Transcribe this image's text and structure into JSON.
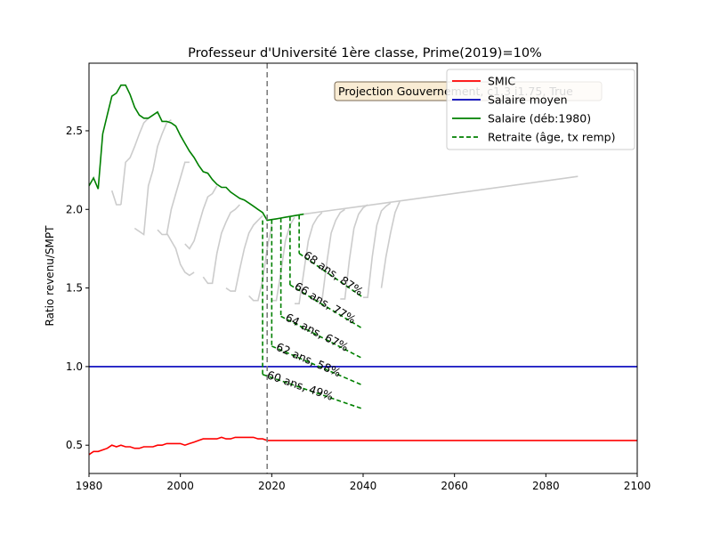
{
  "chart_data": {
    "type": "line",
    "title": "Professeur d'Université 1ère classe, Prime(2019)=10%",
    "xlabel": "",
    "ylabel": "Ratio revenu/SMPT",
    "xlim": [
      1980,
      2100
    ],
    "ylim": [
      0.32,
      2.93
    ],
    "x_ticks": [
      1980,
      2000,
      2020,
      2040,
      2060,
      2080,
      2100
    ],
    "y_ticks": [
      0.5,
      1.0,
      1.5,
      2.0,
      2.5
    ],
    "vline_x": 2019,
    "legend_position": "top-right",
    "annotation": "Projection Gouvernement, c1.3 i1.75, True",
    "colors": {
      "smic": "#ff0000",
      "salaire_moyen": "#0000bb",
      "salaire": "#008000",
      "gray": "#cccccc",
      "vline": "#808080"
    },
    "legend": [
      {
        "label": "SMIC",
        "color": "#ff0000",
        "dash": false
      },
      {
        "label": "Salaire moyen",
        "color": "#0000bb",
        "dash": false
      },
      {
        "label": "Salaire (déb:1980)",
        "color": "#008000",
        "dash": false
      },
      {
        "label": "Retraite (âge, tx remp)",
        "color": "#008000",
        "dash": true
      }
    ],
    "series": [
      {
        "name": "SMIC",
        "color": "#ff0000",
        "x": [
          1980,
          1981,
          1982,
          1983,
          1984,
          1985,
          1986,
          1987,
          1988,
          1989,
          1990,
          1991,
          1992,
          1993,
          1994,
          1995,
          1996,
          1997,
          1998,
          1999,
          2000,
          2001,
          2002,
          2003,
          2004,
          2005,
          2006,
          2007,
          2008,
          2009,
          2010,
          2011,
          2012,
          2013,
          2014,
          2015,
          2016,
          2017,
          2018,
          2019,
          2100
        ],
        "y": [
          0.44,
          0.46,
          0.46,
          0.47,
          0.48,
          0.5,
          0.49,
          0.5,
          0.49,
          0.49,
          0.48,
          0.48,
          0.49,
          0.49,
          0.49,
          0.5,
          0.5,
          0.51,
          0.51,
          0.51,
          0.51,
          0.5,
          0.51,
          0.52,
          0.53,
          0.54,
          0.54,
          0.54,
          0.54,
          0.55,
          0.54,
          0.54,
          0.55,
          0.55,
          0.55,
          0.55,
          0.55,
          0.54,
          0.54,
          0.53,
          0.53
        ]
      },
      {
        "name": "Salaire moyen",
        "color": "#0000bb",
        "x": [
          1980,
          2100
        ],
        "y": [
          1.0,
          1.0
        ]
      },
      {
        "name": "Salaire (déb:1980)",
        "color": "#008000",
        "x": [
          1980,
          1981,
          1982,
          1983,
          1984,
          1985,
          1986,
          1987,
          1988,
          1989,
          1990,
          1991,
          1992,
          1993,
          1994,
          1995,
          1996,
          1997,
          1998,
          1999,
          2000,
          2001,
          2002,
          2003,
          2004,
          2005,
          2006,
          2007,
          2008,
          2009,
          2010,
          2011,
          2012,
          2013,
          2014,
          2015,
          2016,
          2017,
          2018,
          2019,
          2020,
          2021,
          2022,
          2023,
          2024,
          2025,
          2026,
          2027
        ],
        "y": [
          2.15,
          2.2,
          2.13,
          2.48,
          2.6,
          2.72,
          2.74,
          2.79,
          2.79,
          2.73,
          2.65,
          2.6,
          2.58,
          2.58,
          2.6,
          2.62,
          2.56,
          2.56,
          2.55,
          2.53,
          2.47,
          2.42,
          2.37,
          2.33,
          2.28,
          2.24,
          2.23,
          2.19,
          2.16,
          2.14,
          2.14,
          2.11,
          2.09,
          2.07,
          2.06,
          2.04,
          2.02,
          2.0,
          1.98,
          1.93,
          1.935,
          1.94,
          1.945,
          1.95,
          1.955,
          1.96,
          1.965,
          1.97
        ]
      }
    ],
    "gray_curves": [
      {
        "x": [
          1985,
          1986,
          1987
        ],
        "y": [
          2.12,
          2.03,
          2.03
        ]
      },
      {
        "x": [
          1987,
          1988,
          1989,
          1990,
          1991,
          1992,
          1993
        ],
        "y": [
          2.03,
          2.3,
          2.33,
          2.4,
          2.48,
          2.55,
          2.58
        ]
      },
      {
        "x": [
          1990,
          1992,
          1993,
          1994,
          1995,
          1996,
          1997,
          1998
        ],
        "y": [
          1.88,
          1.84,
          2.15,
          2.25,
          2.4,
          2.48,
          2.55,
          2.57
        ]
      },
      {
        "x": [
          1995,
          1996,
          1997,
          1998,
          1999,
          2000,
          2001,
          2002
        ],
        "y": [
          1.87,
          1.84,
          1.84,
          2.0,
          2.1,
          2.2,
          2.3,
          2.3
        ]
      },
      {
        "x": [
          1997,
          1999,
          2000,
          2001,
          2002,
          2003
        ],
        "y": [
          1.85,
          1.75,
          1.65,
          1.6,
          1.58,
          1.6
        ]
      },
      {
        "x": [
          2001,
          2002,
          2003,
          2004,
          2005,
          2006,
          2007,
          2008
        ],
        "y": [
          1.78,
          1.75,
          1.8,
          1.9,
          2.0,
          2.08,
          2.1,
          2.15
        ]
      },
      {
        "x": [
          2005,
          2006,
          2007,
          2008,
          2009,
          2010,
          2011,
          2012,
          2013
        ],
        "y": [
          1.57,
          1.53,
          1.53,
          1.72,
          1.85,
          1.92,
          1.98,
          2.0,
          2.03
        ]
      },
      {
        "x": [
          2010,
          2011,
          2012,
          2013,
          2014,
          2015,
          2016,
          2017,
          2018
        ],
        "y": [
          1.5,
          1.48,
          1.48,
          1.62,
          1.75,
          1.85,
          1.9,
          1.93,
          1.96
        ]
      },
      {
        "x": [
          2015,
          2016,
          2017,
          2018,
          2019,
          2020
        ],
        "y": [
          1.45,
          1.42,
          1.42,
          1.55,
          1.75,
          1.9
        ]
      },
      {
        "x": [
          2020,
          2021,
          2022,
          2023,
          2024,
          2025
        ],
        "y": [
          1.42,
          1.42,
          1.6,
          1.8,
          1.9,
          1.95
        ]
      },
      {
        "x": [
          2025,
          2026,
          2027,
          2028,
          2029,
          2030,
          2031
        ],
        "y": [
          1.4,
          1.4,
          1.6,
          1.8,
          1.9,
          1.95,
          1.98
        ]
      },
      {
        "x": [
          2030,
          2031,
          2032,
          2033,
          2034,
          2035,
          2036
        ],
        "y": [
          1.42,
          1.42,
          1.65,
          1.85,
          1.93,
          1.98,
          2.0
        ]
      },
      {
        "x": [
          2035,
          2036,
          2037,
          2038,
          2039,
          2040,
          2041
        ],
        "y": [
          1.43,
          1.43,
          1.68,
          1.88,
          1.97,
          2.01,
          2.03
        ]
      },
      {
        "x": [
          2040,
          2041,
          2042,
          2043,
          2044,
          2045,
          2046
        ],
        "y": [
          1.44,
          1.44,
          1.7,
          1.9,
          1.99,
          2.02,
          2.04
        ]
      },
      {
        "x": [
          2044,
          2045,
          2046,
          2047,
          2048
        ],
        "y": [
          1.5,
          1.7,
          1.85,
          1.98,
          2.05
        ]
      },
      {
        "x": [
          2027,
          2087
        ],
        "y": [
          1.97,
          2.21
        ]
      }
    ],
    "retraites": [
      {
        "label": "60 ans, 49%",
        "start_x": 2018,
        "start_y": 1.93,
        "end_y": 0.95,
        "end_x": 2040,
        "end_line_y": 0.73
      },
      {
        "label": "62 ans, 58%",
        "start_x": 2020,
        "start_y": 1.935,
        "end_y": 1.13,
        "end_x": 2040,
        "end_line_y": 0.88
      },
      {
        "label": "64 ans, 67%",
        "start_x": 2022,
        "start_y": 1.945,
        "end_y": 1.32,
        "end_x": 2040,
        "end_line_y": 1.05
      },
      {
        "label": "66 ans, 77%",
        "start_x": 2024,
        "start_y": 1.955,
        "end_y": 1.52,
        "end_x": 2040,
        "end_line_y": 1.24
      },
      {
        "label": "68 ans, 87%",
        "start_x": 2026,
        "start_y": 1.965,
        "end_y": 1.72,
        "end_x": 2040,
        "end_line_y": 1.44
      }
    ]
  }
}
